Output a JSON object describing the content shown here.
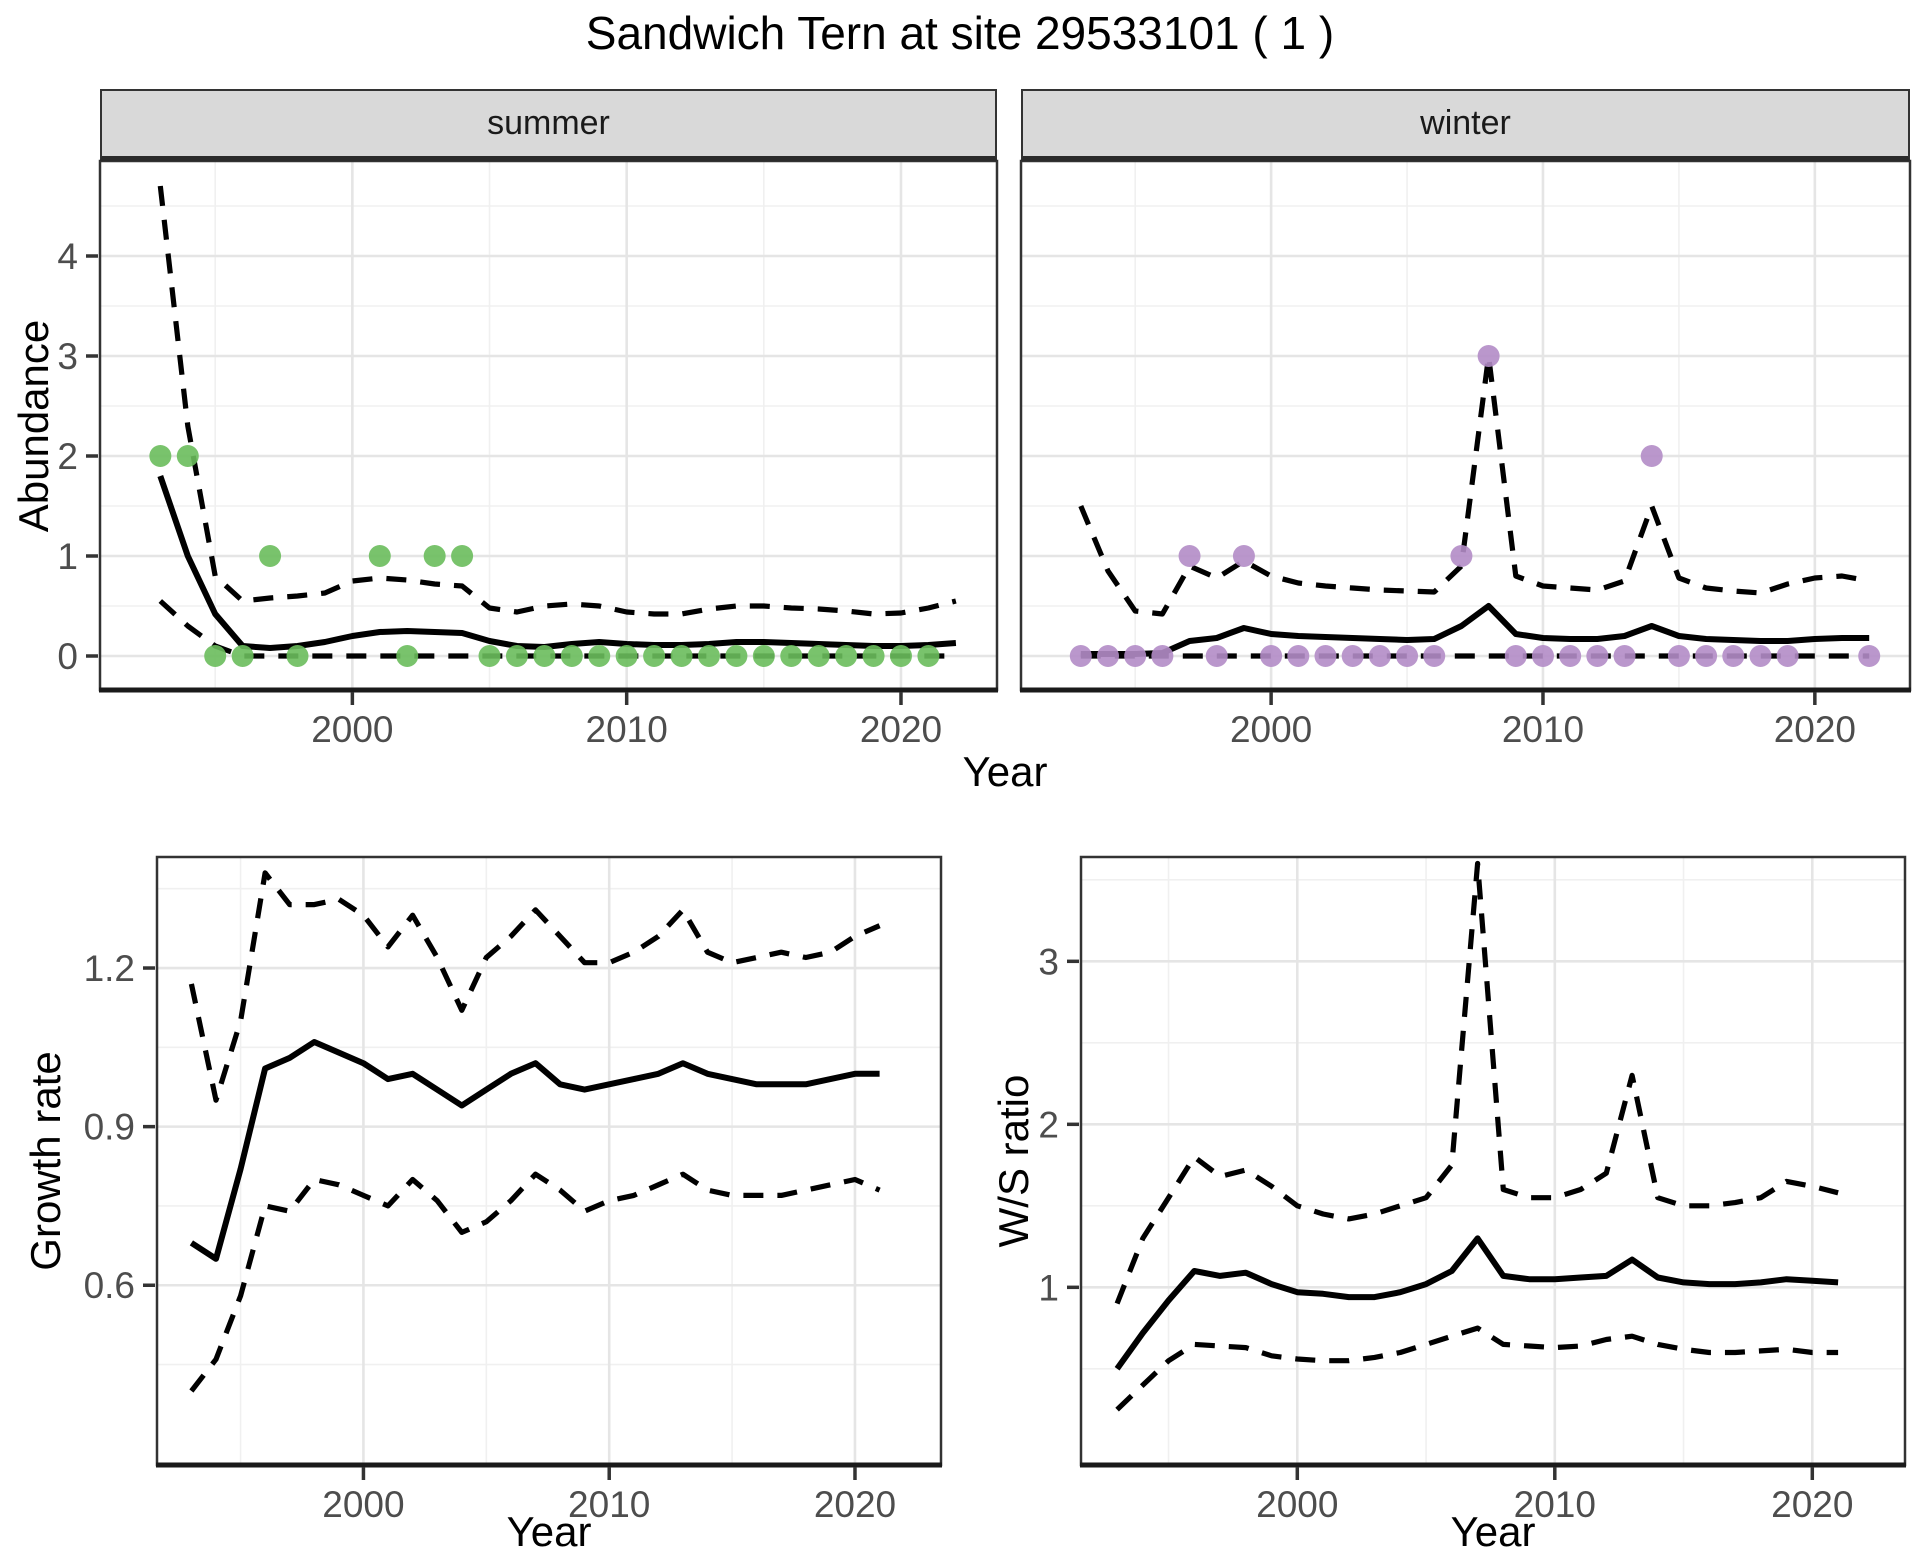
{
  "title": "Sandwich Tern at site 29533101 ( 1 )",
  "axes": {
    "abundance_label": "Abundance",
    "year_label": "Year",
    "growth_label": "Growth rate",
    "ws_label": "W/S ratio"
  },
  "facets": {
    "summer": "summer",
    "winter": "winter"
  },
  "colors": {
    "summer_point": "#6abc5c",
    "winter_point": "#b28cc6",
    "line": "#000000",
    "grid_major": "#e5e5e5",
    "grid_minor": "#f0f0f0",
    "panel_border": "#333333",
    "axis_line": "#1a1a1a",
    "tick_label": "#4d4d4d",
    "strip_bg": "#d9d9d9"
  },
  "chart_data": [
    {
      "id": "summer",
      "type": "line",
      "facet": "summer",
      "xlabel": "Year",
      "ylabel": "Abundance",
      "xlim": [
        1990.8,
        2023.5
      ],
      "ylim": [
        -0.34,
        4.95
      ],
      "grid": true,
      "legend": "none",
      "x_ticks": [
        2000,
        2010,
        2020
      ],
      "x_tick_labels": [
        "2000",
        "2010",
        "2020"
      ],
      "x_minor": [
        1995,
        2005,
        2015
      ],
      "y_ticks": [
        0,
        1,
        2,
        3,
        4
      ],
      "y_tick_labels": [
        "0",
        "1",
        "2",
        "3",
        "4"
      ],
      "y_minor": [
        0.5,
        1.5,
        2.5,
        3.5,
        4.5
      ],
      "show_y_ticks": true,
      "x": [
        1993,
        1994,
        1995,
        1996,
        1997,
        1998,
        1999,
        2000,
        2001,
        2002,
        2003,
        2004,
        2005,
        2006,
        2007,
        2008,
        2009,
        2010,
        2011,
        2012,
        2013,
        2014,
        2015,
        2016,
        2017,
        2018,
        2019,
        2020,
        2021,
        2022
      ],
      "series": [
        {
          "name": "mean",
          "style": "solid",
          "values": [
            1.8,
            1.0,
            0.42,
            0.1,
            0.08,
            0.1,
            0.14,
            0.2,
            0.24,
            0.25,
            0.24,
            0.23,
            0.15,
            0.1,
            0.09,
            0.12,
            0.14,
            0.12,
            0.11,
            0.11,
            0.12,
            0.14,
            0.14,
            0.13,
            0.12,
            0.11,
            0.1,
            0.1,
            0.11,
            0.13
          ]
        },
        {
          "name": "upper-ci",
          "style": "dashed",
          "values": [
            4.7,
            2.3,
            0.8,
            0.55,
            0.58,
            0.6,
            0.63,
            0.75,
            0.78,
            0.76,
            0.72,
            0.7,
            0.48,
            0.44,
            0.5,
            0.52,
            0.5,
            0.44,
            0.42,
            0.42,
            0.47,
            0.5,
            0.5,
            0.48,
            0.47,
            0.45,
            0.42,
            0.43,
            0.48,
            0.55
          ]
        },
        {
          "name": "lower-ci",
          "style": "dashed",
          "values": [
            0.55,
            0.3,
            0.1,
            0,
            0,
            0,
            0,
            0,
            0,
            0,
            0,
            0,
            0,
            0,
            0,
            0,
            0,
            0,
            0,
            0,
            0,
            0,
            0,
            0,
            0,
            0,
            0,
            0,
            0,
            0
          ]
        }
      ],
      "points": {
        "name": "observed-counts",
        "color_key": "summer_point",
        "x": [
          1993,
          1994,
          1995,
          1996,
          1997,
          1998,
          2001,
          2002,
          2003,
          2004,
          2005,
          2006,
          2007,
          2008,
          2009,
          2010,
          2011,
          2012,
          2013,
          2014,
          2015,
          2016,
          2017,
          2018,
          2019,
          2020,
          2021
        ],
        "y": [
          2,
          2,
          0,
          0,
          1,
          0,
          1,
          0,
          1,
          1,
          0,
          0,
          0,
          0,
          0,
          0,
          0,
          0,
          0,
          0,
          0,
          0,
          0,
          0,
          0,
          0,
          0
        ]
      }
    },
    {
      "id": "winter",
      "type": "line",
      "facet": "winter",
      "xlabel": "Year",
      "ylabel": "Abundance",
      "xlim": [
        1990.8,
        2023.5
      ],
      "ylim": [
        -0.34,
        4.95
      ],
      "grid": true,
      "legend": "none",
      "x_ticks": [
        2000,
        2010,
        2020
      ],
      "x_tick_labels": [
        "2000",
        "2010",
        "2020"
      ],
      "x_minor": [
        1995,
        2005,
        2015
      ],
      "y_ticks": [
        0,
        1,
        2,
        3,
        4
      ],
      "y_tick_labels": [],
      "y_minor": [
        0.5,
        1.5,
        2.5,
        3.5,
        4.5
      ],
      "show_y_ticks": false,
      "x": [
        1993,
        1994,
        1995,
        1996,
        1997,
        1998,
        1999,
        2000,
        2001,
        2002,
        2003,
        2004,
        2005,
        2006,
        2007,
        2008,
        2009,
        2010,
        2011,
        2012,
        2013,
        2014,
        2015,
        2016,
        2017,
        2018,
        2019,
        2020,
        2021,
        2022
      ],
      "series": [
        {
          "name": "mean",
          "style": "solid",
          "values": [
            0.02,
            0.02,
            0.02,
            0.03,
            0.15,
            0.18,
            0.28,
            0.22,
            0.2,
            0.19,
            0.18,
            0.17,
            0.16,
            0.17,
            0.3,
            0.5,
            0.22,
            0.18,
            0.17,
            0.17,
            0.2,
            0.3,
            0.2,
            0.17,
            0.16,
            0.15,
            0.15,
            0.17,
            0.18,
            0.18
          ]
        },
        {
          "name": "upper-ci",
          "style": "dashed",
          "values": [
            1.5,
            0.85,
            0.45,
            0.42,
            0.9,
            0.78,
            0.95,
            0.8,
            0.73,
            0.7,
            0.68,
            0.66,
            0.65,
            0.64,
            0.9,
            3.0,
            0.8,
            0.7,
            0.68,
            0.66,
            0.75,
            1.5,
            0.78,
            0.68,
            0.65,
            0.63,
            0.72,
            0.78,
            0.8,
            0.75
          ]
        },
        {
          "name": "lower-ci",
          "style": "dashed",
          "values": [
            0,
            0,
            0,
            0,
            0,
            0,
            0,
            0,
            0,
            0,
            0,
            0,
            0,
            0,
            0,
            0,
            0,
            0,
            0,
            0,
            0,
            0,
            0,
            0,
            0,
            0,
            0,
            0,
            0,
            0
          ]
        }
      ],
      "points": {
        "name": "observed-counts",
        "color_key": "winter_point",
        "x": [
          1993,
          1994,
          1995,
          1996,
          1997,
          1998,
          1999,
          2000,
          2001,
          2002,
          2003,
          2004,
          2005,
          2006,
          2007,
          2008,
          2009,
          2010,
          2011,
          2012,
          2013,
          2014,
          2015,
          2016,
          2017,
          2018,
          2019,
          2022
        ],
        "y": [
          0,
          0,
          0,
          0,
          1,
          0,
          1,
          0,
          0,
          0,
          0,
          0,
          0,
          0,
          1,
          3,
          0,
          0,
          0,
          0,
          0,
          2,
          0,
          0,
          0,
          0,
          0,
          0
        ]
      }
    },
    {
      "id": "growth",
      "type": "line",
      "facet": "",
      "xlabel": "Year",
      "ylabel": "Growth rate",
      "xlim": [
        1991.6,
        2023.5
      ],
      "ylim": [
        0.26,
        1.41
      ],
      "grid": true,
      "legend": "none",
      "x_ticks": [
        2000,
        2010,
        2020
      ],
      "x_tick_labels": [
        "2000",
        "2010",
        "2020"
      ],
      "x_minor": [
        1995,
        2005,
        2015
      ],
      "y_ticks": [
        0.6,
        0.9,
        1.2
      ],
      "y_tick_labels": [
        "0.6",
        "0.9",
        "1.2"
      ],
      "y_minor": [
        0.45,
        0.75,
        1.05,
        1.35
      ],
      "show_y_ticks": true,
      "x": [
        1993,
        1994,
        1995,
        1996,
        1997,
        1998,
        1999,
        2000,
        2001,
        2002,
        2003,
        2004,
        2005,
        2006,
        2007,
        2008,
        2009,
        2010,
        2011,
        2012,
        2013,
        2014,
        2015,
        2016,
        2017,
        2018,
        2019,
        2020,
        2021
      ],
      "series": [
        {
          "name": "mean",
          "style": "solid",
          "values": [
            0.68,
            0.65,
            0.82,
            1.01,
            1.03,
            1.06,
            1.04,
            1.02,
            0.99,
            1.0,
            0.97,
            0.94,
            0.97,
            1.0,
            1.02,
            0.98,
            0.97,
            0.98,
            0.99,
            1.0,
            1.02,
            1.0,
            0.99,
            0.98,
            0.98,
            0.98,
            0.99,
            1.0,
            1.0
          ]
        },
        {
          "name": "upper-ci",
          "style": "dashed",
          "values": [
            1.17,
            0.95,
            1.1,
            1.38,
            1.32,
            1.32,
            1.33,
            1.3,
            1.24,
            1.3,
            1.22,
            1.12,
            1.22,
            1.26,
            1.31,
            1.26,
            1.21,
            1.21,
            1.23,
            1.26,
            1.31,
            1.23,
            1.21,
            1.22,
            1.23,
            1.22,
            1.23,
            1.26,
            1.28
          ]
        },
        {
          "name": "lower-ci",
          "style": "dashed",
          "values": [
            0.4,
            0.46,
            0.58,
            0.75,
            0.74,
            0.8,
            0.79,
            0.77,
            0.75,
            0.8,
            0.76,
            0.7,
            0.72,
            0.76,
            0.81,
            0.78,
            0.74,
            0.76,
            0.77,
            0.79,
            0.81,
            0.78,
            0.77,
            0.77,
            0.77,
            0.78,
            0.79,
            0.8,
            0.78
          ]
        }
      ],
      "points": null
    },
    {
      "id": "ws",
      "type": "line",
      "facet": "",
      "xlabel": "Year",
      "ylabel": "W/S ratio",
      "xlim": [
        1991.6,
        2023.6
      ],
      "ylim": [
        -0.09,
        3.64
      ],
      "grid": true,
      "legend": "none",
      "x_ticks": [
        2000,
        2010,
        2020
      ],
      "x_tick_labels": [
        "2000",
        "2010",
        "2020"
      ],
      "x_minor": [
        1995,
        2005,
        2015
      ],
      "y_ticks": [
        1,
        2,
        3
      ],
      "y_tick_labels": [
        "1",
        "2",
        "3"
      ],
      "y_minor": [
        0.5,
        1.5,
        2.5,
        3.5
      ],
      "show_y_ticks": true,
      "x": [
        1993,
        1994,
        1995,
        1996,
        1997,
        1998,
        1999,
        2000,
        2001,
        2002,
        2003,
        2004,
        2005,
        2006,
        2007,
        2008,
        2009,
        2010,
        2011,
        2012,
        2013,
        2014,
        2015,
        2016,
        2017,
        2018,
        2019,
        2020,
        2021
      ],
      "series": [
        {
          "name": "mean",
          "style": "solid",
          "values": [
            0.5,
            0.72,
            0.92,
            1.1,
            1.07,
            1.09,
            1.02,
            0.97,
            0.96,
            0.94,
            0.94,
            0.97,
            1.02,
            1.1,
            1.3,
            1.07,
            1.05,
            1.05,
            1.06,
            1.07,
            1.17,
            1.06,
            1.03,
            1.02,
            1.02,
            1.03,
            1.05,
            1.04,
            1.03
          ]
        },
        {
          "name": "upper-ci",
          "style": "dashed",
          "values": [
            0.9,
            1.3,
            1.55,
            1.8,
            1.68,
            1.72,
            1.62,
            1.5,
            1.45,
            1.42,
            1.45,
            1.5,
            1.55,
            1.75,
            3.6,
            1.6,
            1.55,
            1.55,
            1.6,
            1.7,
            2.3,
            1.55,
            1.5,
            1.5,
            1.52,
            1.55,
            1.65,
            1.62,
            1.58
          ]
        },
        {
          "name": "lower-ci",
          "style": "dashed",
          "values": [
            0.25,
            0.4,
            0.55,
            0.65,
            0.64,
            0.63,
            0.58,
            0.56,
            0.55,
            0.55,
            0.57,
            0.6,
            0.65,
            0.7,
            0.75,
            0.65,
            0.64,
            0.63,
            0.64,
            0.68,
            0.7,
            0.65,
            0.62,
            0.6,
            0.6,
            0.61,
            0.62,
            0.6,
            0.6
          ]
        }
      ],
      "points": null
    }
  ]
}
